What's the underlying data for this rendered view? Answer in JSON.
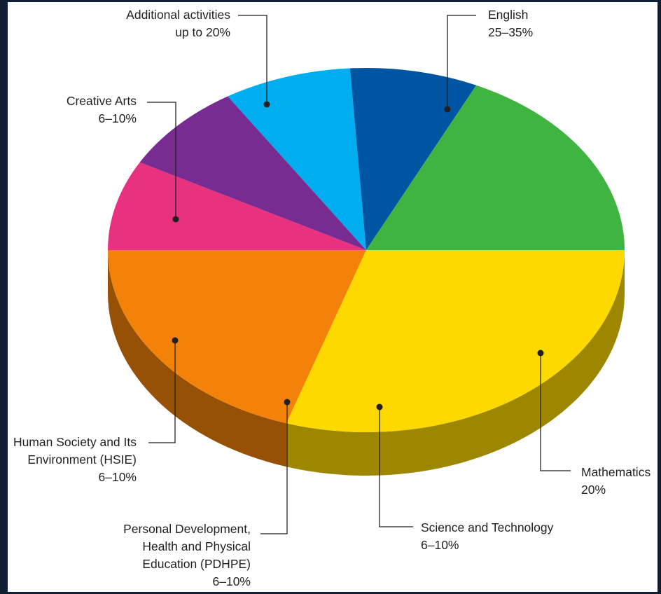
{
  "chart_data": {
    "type": "pie",
    "title": "",
    "style": "3d",
    "slices": [
      {
        "label": [
          "English",
          "25–35%"
        ],
        "value": 30,
        "color": "#fdd900"
      },
      {
        "label": [
          "Mathematics",
          "20%"
        ],
        "value": 20,
        "color": "#f3820b"
      },
      {
        "label": [
          "Science and Technology",
          "6–10%"
        ],
        "value": 8,
        "color": "#e8317f"
      },
      {
        "label": [
          "Personal Development,",
          "Health and Physical",
          "Education (PDHPE)",
          "6–10%"
        ],
        "value": 8,
        "color": "#782b90"
      },
      {
        "label": [
          "Human Society and Its",
          "Environment (HSIE)",
          "6–10%"
        ],
        "value": 8,
        "color": "#00aeef"
      },
      {
        "label": [
          "Creative Arts",
          "6–10%"
        ],
        "value": 8,
        "color": "#0055a2"
      },
      {
        "label": [
          "Additional activities",
          "up to 20%"
        ],
        "value": 18,
        "color": "#40b440"
      }
    ]
  }
}
